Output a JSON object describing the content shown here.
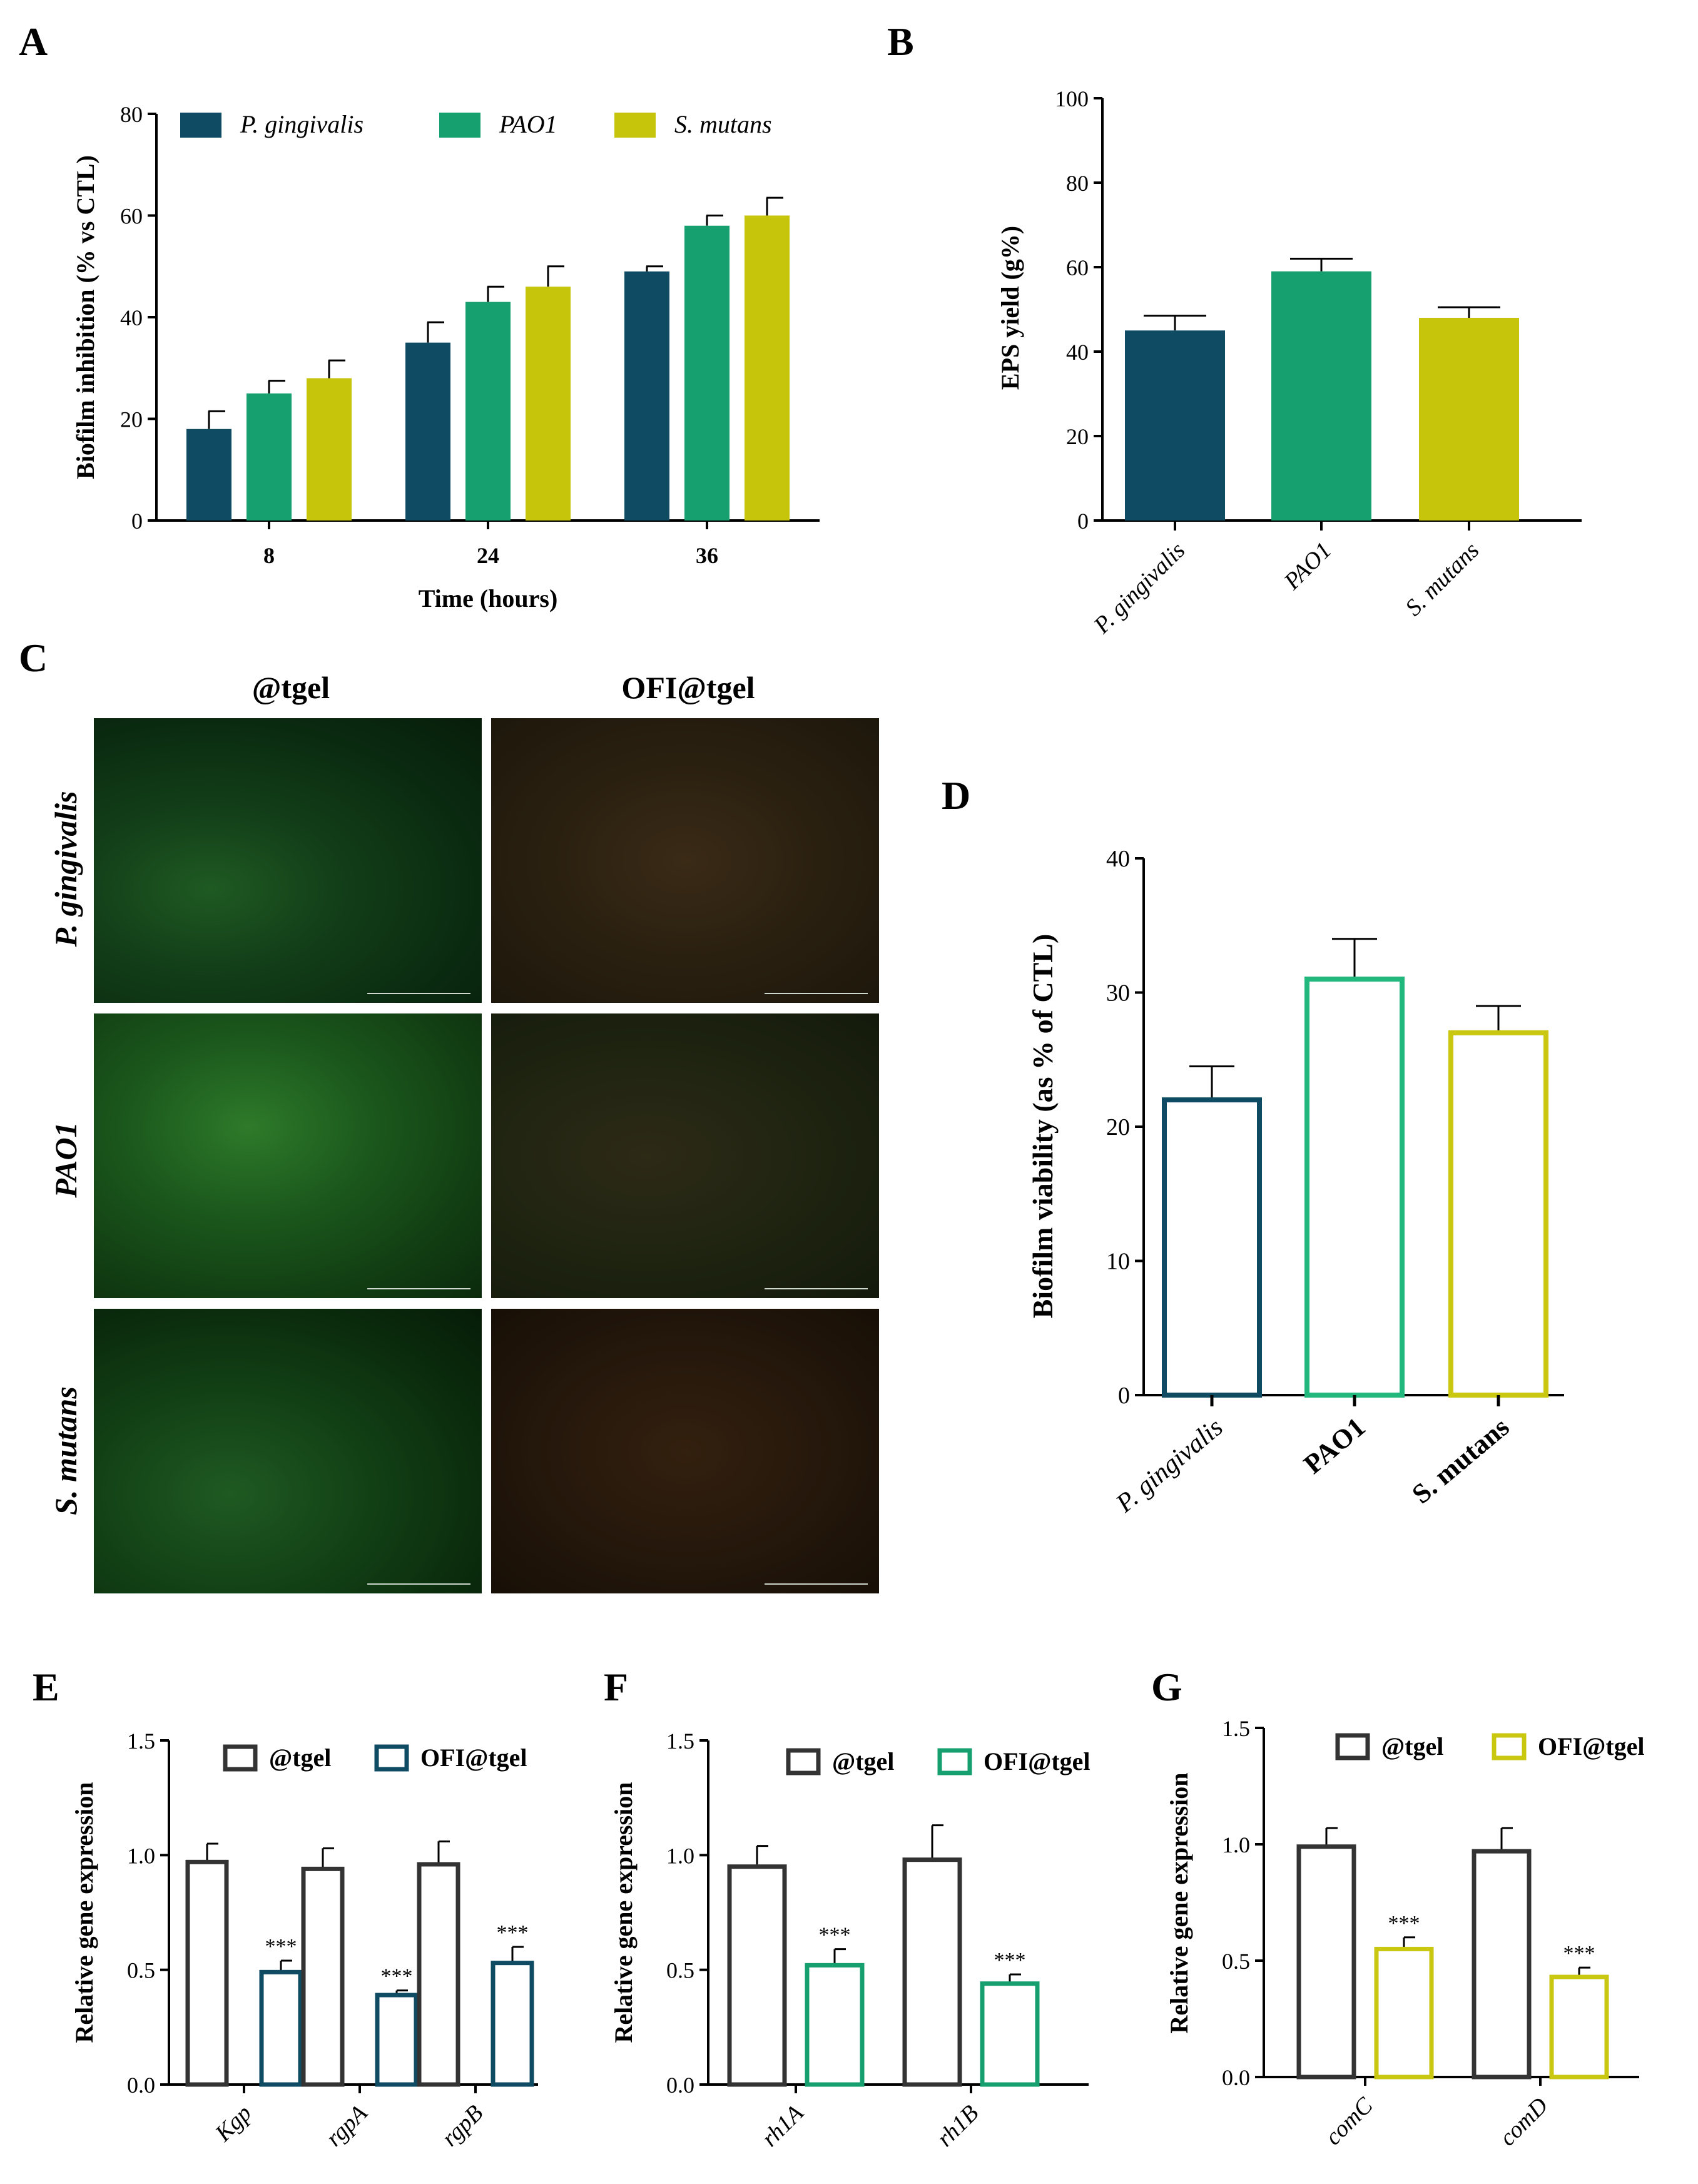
{
  "panels": {
    "A": {
      "letter": "A"
    },
    "B": {
      "letter": "B"
    },
    "C": {
      "letter": "C"
    },
    "D": {
      "letter": "D"
    },
    "E": {
      "letter": "E"
    },
    "F": {
      "letter": "F"
    },
    "G": {
      "letter": "G"
    }
  },
  "micrographs": {
    "column_headers": [
      "@tgel",
      "OFI@tgel"
    ],
    "row_headers": [
      "P. gingivalis",
      "PAO1",
      "S. mutans"
    ]
  },
  "colors": {
    "navy": "#0f4c63",
    "green": "#17a06f",
    "olive": "#c6c50b",
    "dark": "#333333",
    "green_light": "#22b77c",
    "olive_light": "#c9c710"
  },
  "chart_data": [
    {
      "id": "A",
      "type": "bar",
      "ylabel": "Biofilm inhibition (% vs CTL)",
      "xlabel": "Time (hours)",
      "categories": [
        "8",
        "24",
        "36"
      ],
      "ylim": [
        0,
        80
      ],
      "yticks": [
        0,
        20,
        40,
        60,
        80
      ],
      "legend": "top",
      "series": [
        {
          "name": "P. gingivalis",
          "values": [
            18,
            35,
            49
          ],
          "errors": [
            3.5,
            4,
            1
          ]
        },
        {
          "name": "PAO1",
          "values": [
            25,
            43,
            58
          ],
          "errors": [
            2.5,
            3,
            2
          ]
        },
        {
          "name": "S. mutans",
          "values": [
            28,
            46,
            60
          ],
          "errors": [
            3.5,
            4,
            3.5
          ]
        }
      ]
    },
    {
      "id": "B",
      "type": "bar",
      "ylabel": "EPS  yield (g%)",
      "categories": [
        "P. gingivalis",
        "PAO1",
        "S. mutans"
      ],
      "ylim": [
        0,
        100
      ],
      "yticks": [
        0,
        20,
        40,
        60,
        80,
        100
      ],
      "values": [
        45,
        59,
        48
      ],
      "errors": [
        3.5,
        3,
        2.5
      ]
    },
    {
      "id": "D",
      "type": "bar",
      "ylabel": "Biofilm viability (as % of CTL)",
      "categories": [
        "P. gingivalis",
        "PAO1",
        "S. mutans"
      ],
      "ylim": [
        0,
        40
      ],
      "yticks": [
        0,
        10,
        20,
        30,
        40
      ],
      "values": [
        22,
        31,
        27
      ],
      "errors": [
        2.5,
        3,
        2
      ]
    },
    {
      "id": "E",
      "type": "bar",
      "ylabel": "Relative gene expression",
      "categories": [
        "Kgp",
        "rgpA",
        "rgpB"
      ],
      "ylim": [
        0,
        1.5
      ],
      "yticks": [
        "0.0",
        "0.5",
        "1.0",
        "1.5"
      ],
      "legend": "top",
      "series": [
        {
          "name": "@tgel",
          "values": [
            0.97,
            0.94,
            0.96
          ],
          "errors": [
            0.08,
            0.09,
            0.1
          ]
        },
        {
          "name": "OFI@tgel",
          "values": [
            0.49,
            0.39,
            0.53
          ],
          "errors": [
            0.05,
            0.02,
            0.07
          ]
        }
      ],
      "significance": [
        "***",
        "***",
        "***"
      ]
    },
    {
      "id": "F",
      "type": "bar",
      "ylabel": "Relative gene expression",
      "categories": [
        "rh1A",
        "rh1B"
      ],
      "ylim": [
        0,
        1.5
      ],
      "yticks": [
        "0.0",
        "0.5",
        "1.0",
        "1.5"
      ],
      "legend": "top",
      "series": [
        {
          "name": "@tgel",
          "values": [
            0.95,
            0.98
          ],
          "errors": [
            0.09,
            0.15
          ]
        },
        {
          "name": "OFI@tgel",
          "values": [
            0.52,
            0.44
          ],
          "errors": [
            0.07,
            0.04
          ]
        }
      ],
      "significance": [
        "***",
        "***"
      ]
    },
    {
      "id": "G",
      "type": "bar",
      "ylabel": "Relative gene expression",
      "categories": [
        "comC",
        "comD"
      ],
      "ylim": [
        0,
        1.5
      ],
      "yticks": [
        "0.0",
        "0.5",
        "1.0",
        "1.5"
      ],
      "legend": "top",
      "series": [
        {
          "name": "@tgel",
          "values": [
            0.99,
            0.97
          ],
          "errors": [
            0.08,
            0.1
          ]
        },
        {
          "name": "OFI@tgel",
          "values": [
            0.55,
            0.43
          ],
          "errors": [
            0.05,
            0.04
          ]
        }
      ],
      "significance": [
        "***",
        "***"
      ]
    }
  ]
}
